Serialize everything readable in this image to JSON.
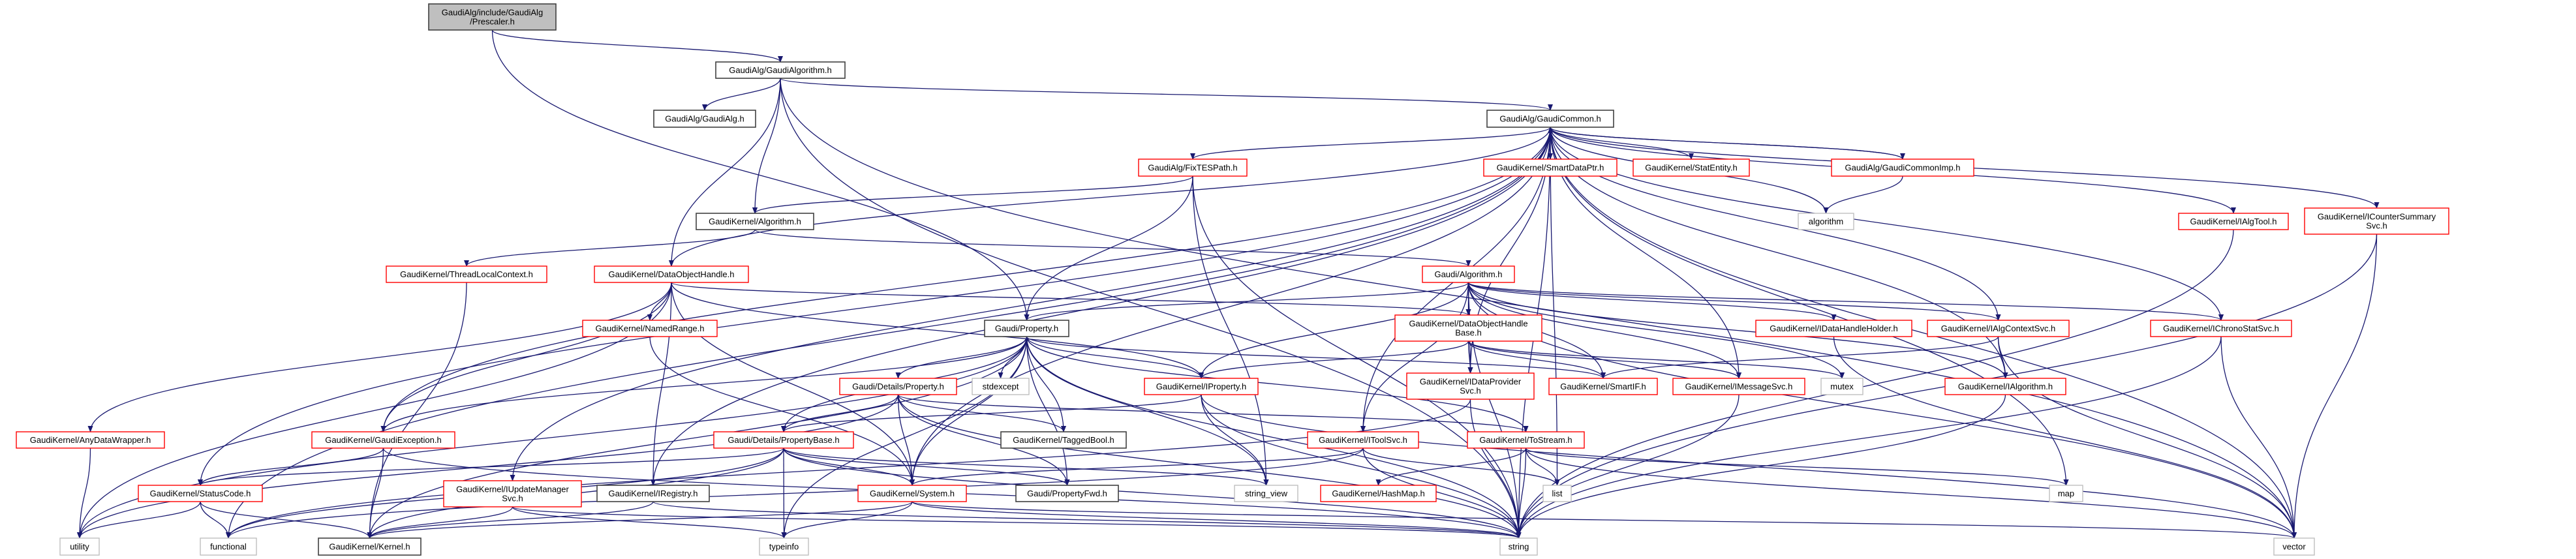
{
  "graph": {
    "edge_color": "#191970",
    "documented_border_color": "#ff0000",
    "linked_border_color": "#404040",
    "system_border_color": "#bfbfbf",
    "root_fill_color": "#bfbfbf",
    "nodes": {
      "prescaler": {
        "lines": [
          "GaudiAlg/include/GaudiAlg",
          "/Prescaler.h"
        ],
        "kind": "root"
      },
      "gaudialgorithm": {
        "lines": [
          "GaudiAlg/GaudiAlgorithm.h"
        ],
        "kind": "linked"
      },
      "gaudialg": {
        "lines": [
          "GaudiAlg/GaudiAlg.h"
        ],
        "kind": "linked"
      },
      "gaudicommon": {
        "lines": [
          "GaudiAlg/GaudiCommon.h"
        ],
        "kind": "linked"
      },
      "smartdataptr": {
        "lines": [
          "GaudiKernel/SmartDataPtr.h"
        ],
        "kind": "red"
      },
      "statentity": {
        "lines": [
          "GaudiKernel/StatEntity.h"
        ],
        "kind": "red"
      },
      "gaudicommonimp": {
        "lines": [
          "GaudiAlg/GaudiCommonImp.h"
        ],
        "kind": "red"
      },
      "algorithm_std": {
        "lines": [
          "algorithm"
        ],
        "kind": "system"
      },
      "fixtespath": {
        "lines": [
          "GaudiAlg/FixTESPath.h"
        ],
        "kind": "red"
      },
      "gk_algorithm": {
        "lines": [
          "GaudiKernel/Algorithm.h"
        ],
        "kind": "linked"
      },
      "ialgtool": {
        "lines": [
          "GaudiKernel/IAlgTool.h"
        ],
        "kind": "red"
      },
      "icountersummarysvc": {
        "lines": [
          "GaudiKernel/ICounterSummary",
          "Svc.h"
        ],
        "kind": "red"
      },
      "threadlocalcontext": {
        "lines": [
          "GaudiKernel/ThreadLocalContext.h"
        ],
        "kind": "red"
      },
      "dataobjecthandle": {
        "lines": [
          "GaudiKernel/DataObjectHandle.h"
        ],
        "kind": "red"
      },
      "gaudi_algorithm": {
        "lines": [
          "Gaudi/Algorithm.h"
        ],
        "kind": "red"
      },
      "namedrange": {
        "lines": [
          "GaudiKernel/NamedRange.h"
        ],
        "kind": "red"
      },
      "gaudi_property": {
        "lines": [
          "Gaudi/Property.h"
        ],
        "kind": "linked"
      },
      "dataobjecthandlebase": {
        "lines": [
          "GaudiKernel/DataObjectHandle",
          "Base.h"
        ],
        "kind": "red"
      },
      "idatahandleholder": {
        "lines": [
          "GaudiKernel/IDataHandleHolder.h"
        ],
        "kind": "red"
      },
      "ialgcontextsvc": {
        "lines": [
          "GaudiKernel/IAlgContextSvc.h"
        ],
        "kind": "red"
      },
      "ichronostatsvc": {
        "lines": [
          "GaudiKernel/IChronoStatSvc.h"
        ],
        "kind": "red"
      },
      "details_property": {
        "lines": [
          "Gaudi/Details/Property.h"
        ],
        "kind": "red"
      },
      "stdexcept": {
        "lines": [
          "stdexcept"
        ],
        "kind": "system"
      },
      "iproperty": {
        "lines": [
          "GaudiKernel/IProperty.h"
        ],
        "kind": "red"
      },
      "idataprovidersvc": {
        "lines": [
          "GaudiKernel/IDataProvider",
          "Svc.h"
        ],
        "kind": "red"
      },
      "smartif": {
        "lines": [
          "GaudiKernel/SmartIF.h"
        ],
        "kind": "red"
      },
      "imessagesvc": {
        "lines": [
          "GaudiKernel/IMessageSvc.h"
        ],
        "kind": "red"
      },
      "mutex": {
        "lines": [
          "mutex"
        ],
        "kind": "system"
      },
      "ialgorithm": {
        "lines": [
          "GaudiKernel/IAlgorithm.h"
        ],
        "kind": "red"
      },
      "anydatawrapper": {
        "lines": [
          "GaudiKernel/AnyDataWrapper.h"
        ],
        "kind": "red"
      },
      "gaudiexception": {
        "lines": [
          "GaudiKernel/GaudiException.h"
        ],
        "kind": "red"
      },
      "propertybase": {
        "lines": [
          "Gaudi/Details/PropertyBase.h"
        ],
        "kind": "red"
      },
      "taggedbool": {
        "lines": [
          "GaudiKernel/TaggedBool.h"
        ],
        "kind": "linked"
      },
      "itoolsvc": {
        "lines": [
          "GaudiKernel/IToolSvc.h"
        ],
        "kind": "red"
      },
      "tostream": {
        "lines": [
          "GaudiKernel/ToStream.h"
        ],
        "kind": "red"
      },
      "statuscode": {
        "lines": [
          "GaudiKernel/StatusCode.h"
        ],
        "kind": "red"
      },
      "iupdatemanagersvc": {
        "lines": [
          "GaudiKernel/IUpdateManager",
          "Svc.h"
        ],
        "kind": "red"
      },
      "iregistry": {
        "lines": [
          "GaudiKernel/IRegistry.h"
        ],
        "kind": "linked"
      },
      "system": {
        "lines": [
          "GaudiKernel/System.h"
        ],
        "kind": "red"
      },
      "propertyfwd": {
        "lines": [
          "Gaudi/PropertyFwd.h"
        ],
        "kind": "linked"
      },
      "string_view": {
        "lines": [
          "string_view"
        ],
        "kind": "system"
      },
      "hashmap": {
        "lines": [
          "GaudiKernel/HashMap.h"
        ],
        "kind": "red"
      },
      "list": {
        "lines": [
          "list"
        ],
        "kind": "system"
      },
      "map": {
        "lines": [
          "map"
        ],
        "kind": "system"
      },
      "utility": {
        "lines": [
          "utility"
        ],
        "kind": "system"
      },
      "functional": {
        "lines": [
          "functional"
        ],
        "kind": "system"
      },
      "kernel": {
        "lines": [
          "GaudiKernel/Kernel.h"
        ],
        "kind": "linked"
      },
      "typeinfo": {
        "lines": [
          "typeinfo"
        ],
        "kind": "system"
      },
      "string": {
        "lines": [
          "string"
        ],
        "kind": "system"
      },
      "vector": {
        "lines": [
          "vector"
        ],
        "kind": "system"
      }
    },
    "edges": [
      [
        "prescaler",
        "gaudialgorithm"
      ],
      [
        "prescaler",
        "gaudi_property"
      ],
      [
        "gaudialgorithm",
        "gaudialg"
      ],
      [
        "gaudialgorithm",
        "gaudicommon"
      ],
      [
        "gaudialgorithm",
        "gk_algorithm"
      ],
      [
        "gaudialgorithm",
        "dataobjecthandle"
      ],
      [
        "gaudialgorithm",
        "string"
      ],
      [
        "gaudialgorithm",
        "vector"
      ],
      [
        "gaudicommon",
        "smartdataptr"
      ],
      [
        "gaudicommon",
        "statentity"
      ],
      [
        "gaudicommon",
        "gaudicommonimp"
      ],
      [
        "gaudicommon",
        "algorithm_std"
      ],
      [
        "gaudicommon",
        "fixtespath"
      ],
      [
        "gaudicommon",
        "dataobjecthandle"
      ],
      [
        "gaudicommon",
        "gaudiexception"
      ],
      [
        "gaudicommon",
        "statuscode"
      ],
      [
        "gaudicommon",
        "iupdatemanagersvc"
      ],
      [
        "gaudicommon",
        "iregistry"
      ],
      [
        "gaudicommon",
        "functional"
      ],
      [
        "gaudicommon",
        "string"
      ],
      [
        "gaudicommon",
        "vector"
      ],
      [
        "gaudicommon",
        "map"
      ],
      [
        "gaudicommon",
        "list"
      ],
      [
        "gaudicommon",
        "ialgtool"
      ],
      [
        "gaudicommon",
        "icountersummarysvc"
      ],
      [
        "gaudicommon",
        "ichronostatsvc"
      ],
      [
        "gaudicommon",
        "ialgcontextsvc"
      ],
      [
        "gaudicommon",
        "ialgorithm"
      ],
      [
        "gaudicommon",
        "itoolsvc"
      ],
      [
        "gaudicommon",
        "idataprovidersvc"
      ],
      [
        "gaudicommon",
        "imessagesvc"
      ],
      [
        "gaudicommon",
        "system"
      ],
      [
        "gaudicommonimp",
        "gaudicommon"
      ],
      [
        "gaudicommonimp",
        "algorithm_std"
      ],
      [
        "fixtespath",
        "gk_algorithm"
      ],
      [
        "fixtespath",
        "gaudi_property"
      ],
      [
        "fixtespath",
        "string_view"
      ],
      [
        "fixtespath",
        "string"
      ],
      [
        "gk_algorithm",
        "threadlocalcontext"
      ],
      [
        "gk_algorithm",
        "gaudi_algorithm"
      ],
      [
        "threadlocalcontext",
        "kernel"
      ],
      [
        "gaudi_algorithm",
        "gaudi_property"
      ],
      [
        "gaudi_algorithm",
        "dataobjecthandlebase"
      ],
      [
        "gaudi_algorithm",
        "idatahandleholder"
      ],
      [
        "gaudi_algorithm",
        "ialgcontextsvc"
      ],
      [
        "gaudi_algorithm",
        "ichronostatsvc"
      ],
      [
        "gaudi_algorithm",
        "ialgorithm"
      ],
      [
        "gaudi_algorithm",
        "idataprovidersvc"
      ],
      [
        "gaudi_algorithm",
        "itoolsvc"
      ],
      [
        "gaudi_algorithm",
        "imessagesvc"
      ],
      [
        "gaudi_algorithm",
        "smartif"
      ],
      [
        "gaudi_algorithm",
        "iproperty"
      ],
      [
        "gaudi_algorithm",
        "mutex"
      ],
      [
        "gaudi_algorithm",
        "string"
      ],
      [
        "gaudi_algorithm",
        "vector"
      ],
      [
        "dataobjecthandle",
        "namedrange"
      ],
      [
        "dataobjecthandle",
        "anydatawrapper"
      ],
      [
        "dataobjecthandle",
        "gaudiexception"
      ],
      [
        "dataobjecthandle",
        "iproperty"
      ],
      [
        "dataobjecthandle",
        "dataobjecthandlebase"
      ],
      [
        "dataobjecthandle",
        "iregistry"
      ],
      [
        "dataobjecthandle",
        "system"
      ],
      [
        "dataobjecthandle",
        "utility"
      ],
      [
        "namedrange",
        "system"
      ],
      [
        "dataobjecthandlebase",
        "idataprovidersvc"
      ],
      [
        "dataobjecthandlebase",
        "smartif"
      ],
      [
        "dataobjecthandlebase",
        "imessagesvc"
      ],
      [
        "dataobjecthandlebase",
        "iproperty"
      ],
      [
        "dataobjecthandlebase",
        "mutex"
      ],
      [
        "gaudi_property",
        "details_property"
      ],
      [
        "gaudi_property",
        "stdexcept"
      ],
      [
        "gaudi_property",
        "taggedbool"
      ],
      [
        "gaudi_property",
        "propertyfwd"
      ],
      [
        "gaudi_property",
        "propertybase"
      ],
      [
        "gaudi_property",
        "iproperty"
      ],
      [
        "gaudi_property",
        "tostream"
      ],
      [
        "gaudi_property",
        "string"
      ],
      [
        "gaudi_property",
        "string_view"
      ],
      [
        "gaudi_property",
        "utility"
      ],
      [
        "gaudi_property",
        "typeinfo"
      ],
      [
        "gaudi_property",
        "kernel"
      ],
      [
        "gaudi_property",
        "smartif"
      ],
      [
        "gaudi_property",
        "system"
      ],
      [
        "gaudi_property",
        "gaudiexception"
      ],
      [
        "details_property",
        "propertybase"
      ],
      [
        "details_property",
        "taggedbool"
      ],
      [
        "details_property",
        "propertyfwd"
      ],
      [
        "details_property",
        "tostream"
      ],
      [
        "details_property",
        "string"
      ],
      [
        "details_property",
        "utility"
      ],
      [
        "details_property",
        "system"
      ],
      [
        "propertybase",
        "system"
      ],
      [
        "propertybase",
        "typeinfo"
      ],
      [
        "propertybase",
        "propertyfwd"
      ],
      [
        "propertybase",
        "string"
      ],
      [
        "propertybase",
        "string_view"
      ],
      [
        "propertybase",
        "statuscode"
      ],
      [
        "propertybase",
        "kernel"
      ],
      [
        "propertybase",
        "functional"
      ],
      [
        "iproperty",
        "propertybase"
      ],
      [
        "iproperty",
        "string"
      ],
      [
        "iproperty",
        "string_view"
      ],
      [
        "iproperty",
        "vector"
      ],
      [
        "tostream",
        "hashmap"
      ],
      [
        "tostream",
        "list"
      ],
      [
        "tostream",
        "map"
      ],
      [
        "tostream",
        "string"
      ],
      [
        "tostream",
        "vector"
      ],
      [
        "itoolsvc",
        "list"
      ],
      [
        "itoolsvc",
        "string"
      ],
      [
        "itoolsvc",
        "system"
      ],
      [
        "itoolsvc",
        "functional"
      ],
      [
        "idataprovidersvc",
        "string"
      ],
      [
        "idataprovidersvc",
        "functional"
      ],
      [
        "imessagesvc",
        "string"
      ],
      [
        "gaudiexception",
        "statuscode"
      ],
      [
        "gaudiexception",
        "kernel"
      ],
      [
        "gaudiexception",
        "string"
      ],
      [
        "statuscode",
        "utility"
      ],
      [
        "statuscode",
        "functional"
      ],
      [
        "statuscode",
        "kernel"
      ],
      [
        "iupdatemanagersvc",
        "typeinfo"
      ],
      [
        "iupdatemanagersvc",
        "string"
      ],
      [
        "iupdatemanagersvc",
        "kernel"
      ],
      [
        "iregistry",
        "kernel"
      ],
      [
        "iregistry",
        "string"
      ],
      [
        "system",
        "typeinfo"
      ],
      [
        "system",
        "kernel"
      ],
      [
        "system",
        "string"
      ],
      [
        "system",
        "vector"
      ],
      [
        "anydatawrapper",
        "utility"
      ],
      [
        "ialgcontextsvc",
        "ialgorithm"
      ],
      [
        "ialgcontextsvc",
        "smartif"
      ],
      [
        "ialgcontextsvc",
        "vector"
      ],
      [
        "ialgorithm",
        "string"
      ],
      [
        "ichronostatsvc",
        "string"
      ],
      [
        "ichronostatsvc",
        "vector"
      ],
      [
        "ialgtool",
        "string"
      ],
      [
        "icountersummarysvc",
        "string"
      ],
      [
        "icountersummarysvc",
        "vector"
      ],
      [
        "idatahandleholder",
        "vector"
      ]
    ]
  }
}
